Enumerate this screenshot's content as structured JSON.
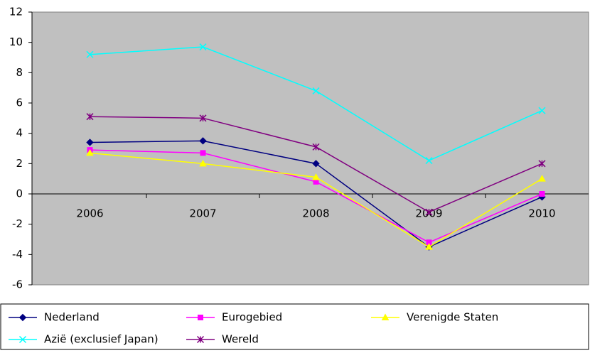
{
  "chart_data": {
    "type": "line",
    "categories": [
      "2006",
      "2007",
      "2008",
      "2009",
      "2010"
    ],
    "series": [
      {
        "name": "Nederland",
        "color": "#000080",
        "marker": "diamond",
        "values": [
          3.4,
          3.5,
          2.0,
          -3.5,
          -0.2
        ]
      },
      {
        "name": "Eurogebied",
        "color": "#ff00ff",
        "marker": "square",
        "values": [
          2.9,
          2.7,
          0.8,
          -3.2,
          0.0
        ]
      },
      {
        "name": "Verenigde Staten",
        "color": "#ffff00",
        "marker": "triangle",
        "values": [
          2.7,
          2.0,
          1.1,
          -3.5,
          1.0
        ]
      },
      {
        "name": "Azië (exclusief Japan)",
        "color": "#00ffff",
        "marker": "x",
        "values": [
          9.2,
          9.7,
          6.8,
          2.2,
          5.5
        ]
      },
      {
        "name": "Wereld",
        "color": "#800080",
        "marker": "asterisk",
        "values": [
          5.1,
          5.0,
          3.1,
          -1.2,
          2.0
        ]
      }
    ],
    "ylim": [
      -6,
      12
    ],
    "yticks": [
      -6,
      -4,
      -2,
      0,
      2,
      4,
      6,
      8,
      10,
      12
    ],
    "grid": false,
    "legend": "bottom",
    "plot_background": "#c0c0c0"
  }
}
